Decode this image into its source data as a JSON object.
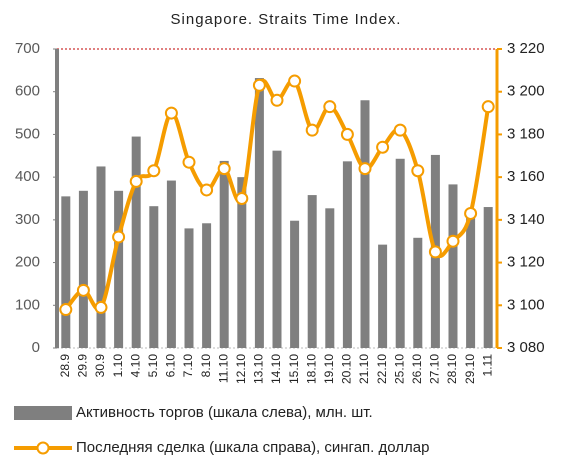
{
  "chart_data": {
    "type": "bar_line",
    "title": "Singapore. Straits Time Index.",
    "categories": [
      "28.9",
      "29.9",
      "30.9",
      "1.10",
      "4.10",
      "5.10",
      "6.10",
      "7.10",
      "8.10",
      "11.10",
      "12.10",
      "13.10",
      "14.10",
      "15.10",
      "18.10",
      "19.10",
      "20.10",
      "21.10",
      "22.10",
      "25.10",
      "26.10",
      "27.10",
      "28.10",
      "29.10",
      "1.11"
    ],
    "series": [
      {
        "name": "Активность торгов (шкала слева), млн. шт.",
        "color": "#7f7f7f",
        "type": "bar",
        "axis": "y",
        "values": [
          355,
          368,
          425,
          368,
          495,
          332,
          392,
          280,
          292,
          438,
          400,
          632,
          462,
          298,
          358,
          327,
          437,
          580,
          242,
          443,
          258,
          452,
          383,
          315,
          330
        ]
      },
      {
        "name": "Последняя сделка (шкала справа), сингап. доллар",
        "color": "#f59c00",
        "type": "line",
        "axis": "y2",
        "values": [
          3098,
          3107,
          3099,
          3132,
          3158,
          3163,
          3190,
          3167,
          3154,
          3164,
          3150,
          3203,
          3196,
          3205,
          3182,
          3193,
          3180,
          3164,
          3174,
          3182,
          3163,
          3125,
          3130,
          3143,
          3193
        ]
      }
    ],
    "ylim": [
      0,
      700
    ],
    "yticks": [
      0,
      100,
      200,
      300,
      400,
      500,
      600,
      700
    ],
    "y2lim": [
      3080,
      3220
    ],
    "y2ticks": [
      {
        "value": 3080,
        "label": "3 080"
      },
      {
        "value": 3100,
        "label": "3 100"
      },
      {
        "value": 3120,
        "label": "3 120"
      },
      {
        "value": 3140,
        "label": "3 140"
      },
      {
        "value": 3160,
        "label": "3 160"
      },
      {
        "value": 3180,
        "label": "3 180"
      },
      {
        "value": 3200,
        "label": "3 200"
      },
      {
        "value": 3220,
        "label": "3 220"
      }
    ]
  }
}
